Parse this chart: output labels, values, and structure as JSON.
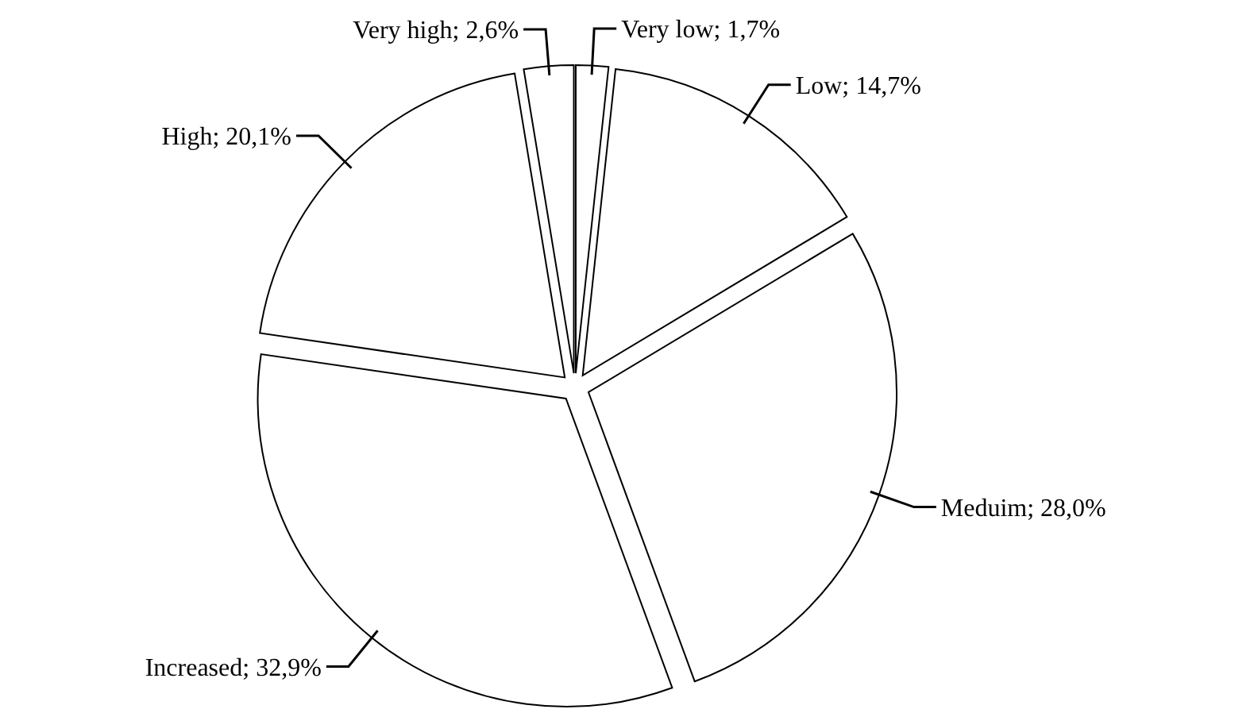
{
  "chart_data": {
    "type": "pie",
    "categories": [
      "Very low",
      "Low",
      "Meduim",
      "Increased",
      "High",
      "Very high"
    ],
    "values": [
      1.7,
      14.7,
      28.0,
      32.9,
      20.1,
      2.6
    ],
    "colors": [
      "#ffffff",
      "#ffffff",
      "#ffffff",
      "#ffffff",
      "#ffffff",
      "#ffffff"
    ],
    "value_labels": [
      "1,7%",
      "14,7%",
      "28,0%",
      "32,9%",
      "20,1%",
      "2,6%"
    ]
  }
}
